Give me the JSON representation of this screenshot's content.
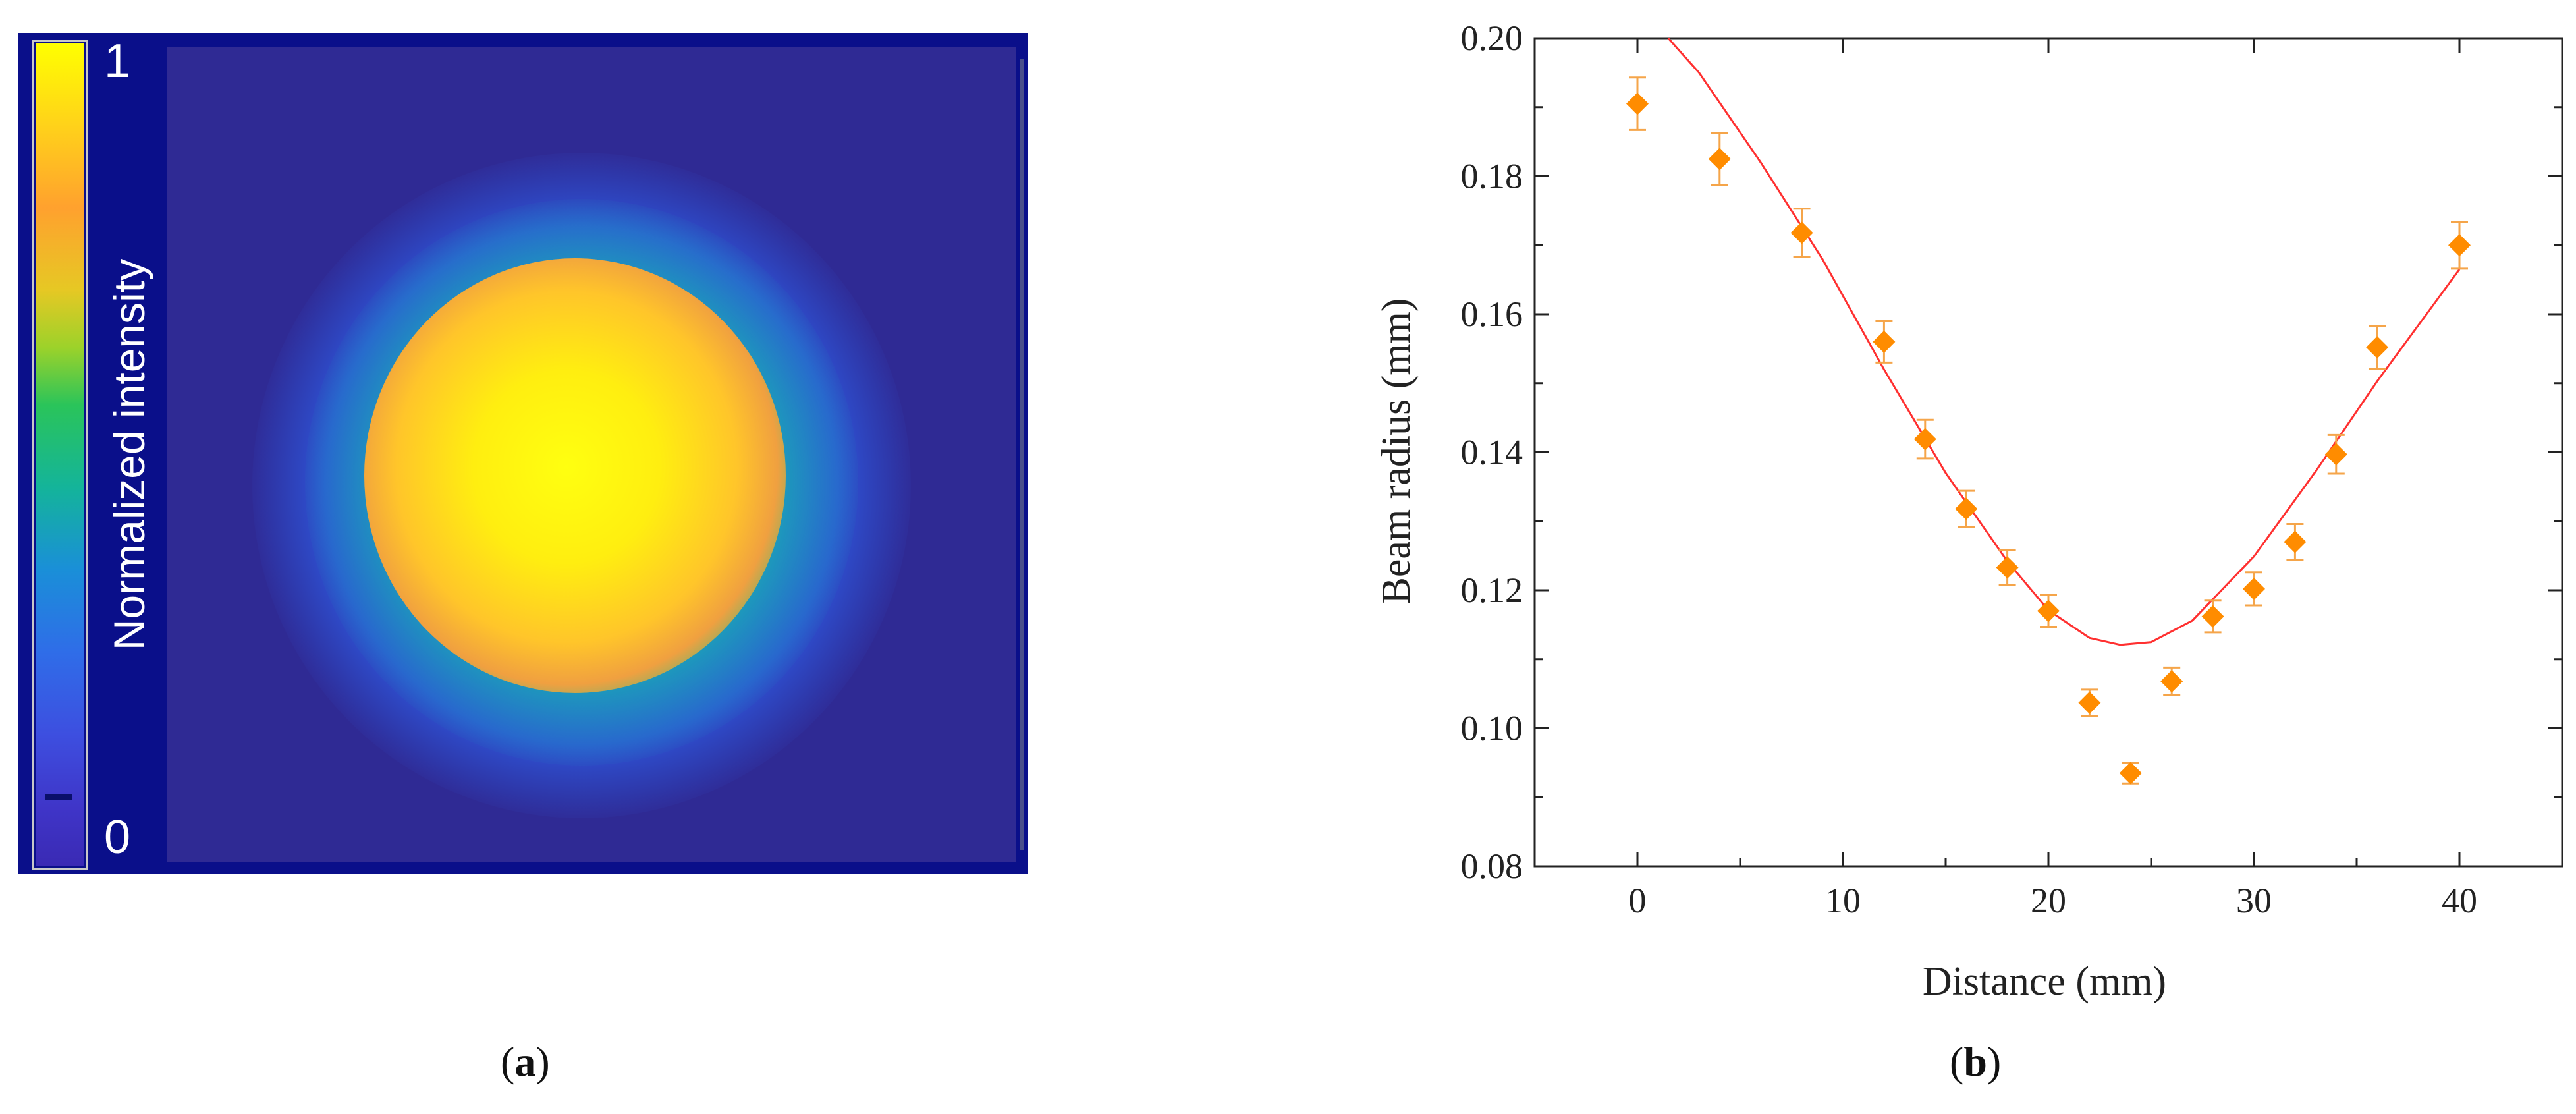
{
  "panel_a": {
    "colorbar_label": "Normalized intensity",
    "colorbar_max": "1",
    "colorbar_min": "0",
    "colormap": [
      "#3a2ab4",
      "#1a8fd8",
      "#14b49a",
      "#2ac45a",
      "#e6c824",
      "#ffa12e",
      "#ffff00"
    ],
    "caption_letter": "a"
  },
  "panel_b": {
    "caption_letter": "b"
  },
  "chart_data": {
    "type": "scatter",
    "xlabel": "Distance (mm)",
    "ylabel": "Beam radius (mm)",
    "xlim": [
      -5,
      45
    ],
    "ylim": [
      0.08,
      0.2
    ],
    "xticks": [
      0,
      10,
      20,
      30,
      40
    ],
    "yticks": [
      0.08,
      0.1,
      0.12,
      0.14,
      0.16,
      0.18,
      0.2
    ],
    "xtick_labels": [
      "0",
      "10",
      "20",
      "30",
      "40"
    ],
    "ytick_labels": [
      "0.08",
      "0.10",
      "0.12",
      "0.14",
      "0.16",
      "0.18",
      "0.20"
    ],
    "marker": "diamond",
    "marker_color": "#ff8c00",
    "fit_color": "#ff3030",
    "series": [
      {
        "x": [
          0,
          4,
          8,
          12,
          14,
          16,
          18,
          20,
          22,
          24,
          26,
          28,
          30,
          32,
          34,
          36,
          40
        ],
        "y": [
          0.1905,
          0.1825,
          0.1718,
          0.156,
          0.1419,
          0.1318,
          0.1233,
          0.117,
          0.1037,
          0.0935,
          0.1068,
          0.1162,
          0.1202,
          0.127,
          0.1397,
          0.1552,
          0.17
        ],
        "error": [
          0.0038,
          0.0038,
          0.0035,
          0.003,
          0.0028,
          0.0026,
          0.0025,
          0.0023,
          0.0019,
          0.0015,
          0.002,
          0.0023,
          0.0024,
          0.0026,
          0.0028,
          0.0031,
          0.0034
        ]
      }
    ],
    "fit": {
      "x": [
        1.5,
        3,
        6,
        9,
        12,
        15,
        18,
        20,
        22,
        23.5,
        25,
        27,
        30,
        33,
        36,
        40
      ],
      "y": [
        0.2,
        0.195,
        0.182,
        0.168,
        0.152,
        0.137,
        0.1242,
        0.1171,
        0.1131,
        0.1121,
        0.1125,
        0.1156,
        0.1249,
        0.1372,
        0.1503,
        0.1665
      ]
    }
  }
}
